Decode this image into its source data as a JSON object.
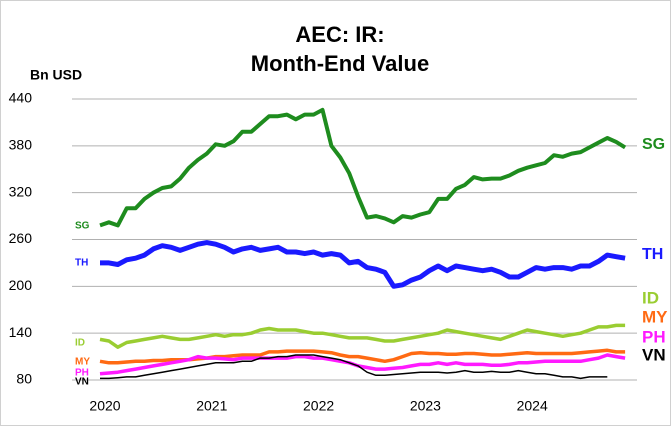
{
  "chart_data": {
    "type": "line",
    "title": [
      "AEC: IR:",
      "Month-End Value"
    ],
    "y_label": "Bn USD",
    "categories": [
      "2020",
      null,
      null,
      null,
      null,
      null,
      null,
      null,
      null,
      null,
      null,
      null,
      "2021",
      null,
      null,
      null,
      null,
      null,
      null,
      null,
      null,
      null,
      null,
      null,
      "2022",
      null,
      null,
      null,
      null,
      null,
      null,
      null,
      null,
      null,
      null,
      null,
      "2023",
      null,
      null,
      null,
      null,
      null,
      null,
      null,
      null,
      null,
      null,
      null,
      "2024",
      null,
      null,
      null,
      null,
      null,
      null,
      null,
      null,
      null,
      null,
      null
    ],
    "ylim": [
      80,
      440
    ],
    "yticks": [
      80,
      140,
      200,
      260,
      320,
      380,
      440
    ],
    "grid": true,
    "series": [
      {
        "name": "SG",
        "color": "#1e8c1e",
        "values": [
          278,
          282,
          278,
          300,
          300,
          312,
          320,
          326,
          328,
          338,
          352,
          362,
          370,
          382,
          380,
          386,
          398,
          398,
          408,
          418,
          418,
          420,
          414,
          420,
          420,
          426,
          380,
          365,
          345,
          315,
          288,
          290,
          287,
          282,
          290,
          288,
          292,
          295,
          312,
          312,
          325,
          330,
          340,
          337,
          338,
          338,
          342,
          348,
          352,
          355,
          358,
          368,
          366,
          370,
          372,
          378,
          384,
          390,
          385,
          378
        ]
      },
      {
        "name": "TH",
        "color": "#1a1aff",
        "values": [
          230,
          230,
          228,
          234,
          236,
          240,
          248,
          252,
          250,
          246,
          250,
          254,
          256,
          254,
          250,
          244,
          248,
          250,
          246,
          248,
          250,
          244,
          244,
          242,
          244,
          240,
          242,
          240,
          230,
          232,
          224,
          222,
          218,
          200,
          202,
          208,
          212,
          220,
          226,
          220,
          226,
          224,
          222,
          220,
          222,
          218,
          212,
          212,
          218,
          224,
          222,
          224,
          224,
          222,
          226,
          226,
          232,
          240,
          238,
          236
        ]
      },
      {
        "name": "ID",
        "color": "#9acd32",
        "values": [
          132,
          130,
          122,
          128,
          130,
          132,
          134,
          136,
          134,
          132,
          132,
          134,
          136,
          138,
          136,
          138,
          138,
          140,
          144,
          146,
          144,
          144,
          144,
          142,
          140,
          140,
          138,
          136,
          134,
          134,
          134,
          132,
          130,
          130,
          132,
          134,
          136,
          138,
          140,
          144,
          142,
          140,
          138,
          136,
          134,
          132,
          136,
          140,
          144,
          142,
          140,
          138,
          136,
          138,
          140,
          144,
          148,
          148,
          150,
          150
        ]
      },
      {
        "name": "MY",
        "color": "#ff6a13",
        "values": [
          104,
          102,
          102,
          103,
          104,
          104,
          105,
          105,
          106,
          106,
          106,
          107,
          108,
          110,
          110,
          111,
          112,
          112,
          112,
          116,
          116,
          117,
          117,
          117,
          117,
          116,
          115,
          112,
          110,
          110,
          108,
          106,
          104,
          106,
          110,
          114,
          115,
          114,
          114,
          113,
          113,
          114,
          114,
          113,
          112,
          112,
          113,
          114,
          115,
          114,
          114,
          114,
          114,
          114,
          115,
          116,
          117,
          118,
          116,
          116
        ]
      },
      {
        "name": "PH",
        "color": "#ff1aff",
        "values": [
          88,
          89,
          90,
          92,
          94,
          96,
          98,
          100,
          102,
          104,
          106,
          110,
          108,
          108,
          107,
          106,
          108,
          108,
          108,
          108,
          108,
          108,
          110,
          110,
          108,
          108,
          106,
          104,
          102,
          98,
          96,
          94,
          94,
          95,
          96,
          98,
          100,
          100,
          102,
          100,
          102,
          100,
          100,
          100,
          99,
          99,
          100,
          102,
          102,
          103,
          104,
          104,
          104,
          104,
          104,
          106,
          108,
          112,
          110,
          108
        ]
      },
      {
        "name": "VN",
        "color": "#000000",
        "values": [
          82,
          82,
          83,
          84,
          84,
          86,
          88,
          90,
          92,
          94,
          96,
          98,
          100,
          102,
          102,
          102,
          104,
          104,
          108,
          108,
          110,
          110,
          112,
          112,
          112,
          110,
          108,
          106,
          102,
          98,
          90,
          86,
          86,
          87,
          88,
          89,
          90,
          90,
          90,
          89,
          90,
          92,
          90,
          90,
          91,
          90,
          90,
          92,
          90,
          88,
          88,
          86,
          84,
          84,
          82,
          84,
          84,
          84,
          null,
          null
        ]
      }
    ]
  }
}
